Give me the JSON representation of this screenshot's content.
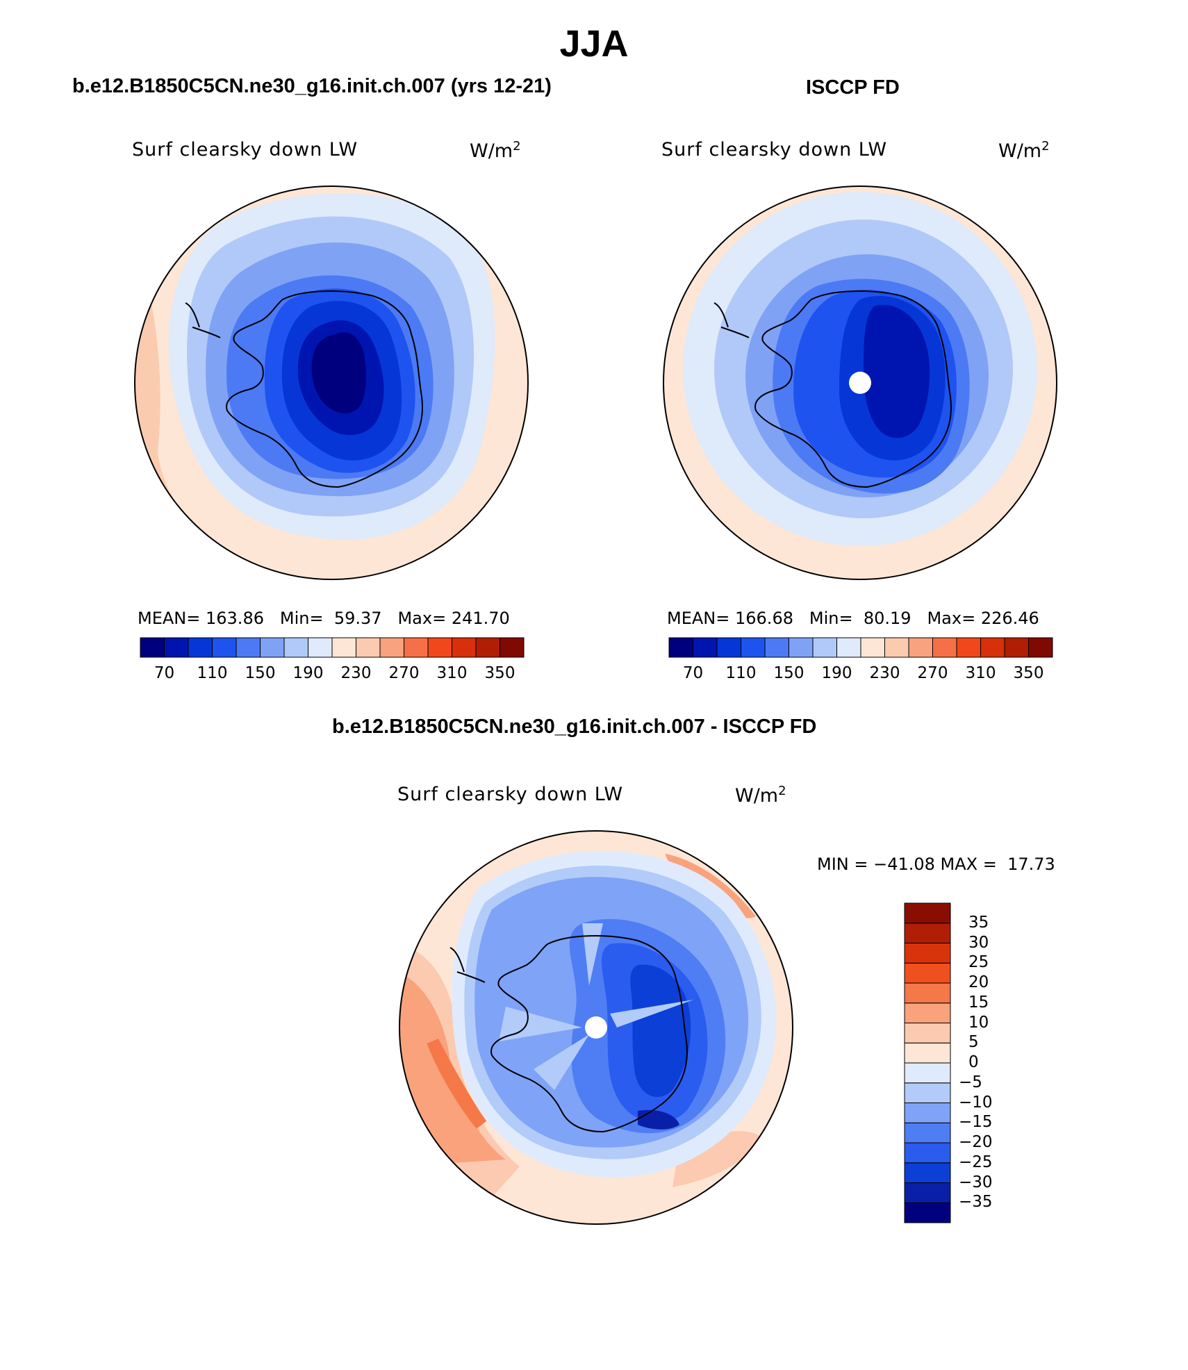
{
  "title": "JJA",
  "panels": {
    "model": {
      "title": "b.e12.B1850C5CN.ne30_g16.init.ch.007 (yrs 12-21)",
      "variable": "Surf clearsky down LW",
      "units": "W/m",
      "units_sup": "2",
      "mean_label": "MEAN=",
      "mean": "163.86",
      "min_label": "Min=",
      "min": "59.37",
      "max_label": "Max=",
      "max": "241.70"
    },
    "obs": {
      "title": "ISCCP FD",
      "variable": "Surf clearsky down LW",
      "units": "W/m",
      "units_sup": "2",
      "mean_label": "MEAN=",
      "mean": "166.68",
      "min_label": "Min=",
      "min": "80.19",
      "max_label": "Max=",
      "max": "226.46"
    },
    "diff": {
      "title": "b.e12.B1850C5CN.ne30_g16.init.ch.007 - ISCCP FD",
      "variable": "Surf clearsky down LW",
      "units": "W/m",
      "units_sup": "2",
      "minmax_text": "MIN = −41.08 MAX =  17.73"
    }
  },
  "colorbar_abs": {
    "colors": [
      "#00007f",
      "#0015b0",
      "#0637d6",
      "#1e53f0",
      "#4b7af4",
      "#7fa2f5",
      "#b1c9f8",
      "#dfeafb",
      "#fde6d6",
      "#fbcbb0",
      "#f8a27e",
      "#f57048",
      "#f0481c",
      "#d7300a",
      "#b01e05",
      "#7f0a02"
    ],
    "tick_labels": [
      "70",
      "110",
      "150",
      "190",
      "230",
      "270",
      "310",
      "350"
    ]
  },
  "colorbar_diff": {
    "colors": [
      "#00007f",
      "#0a1fa8",
      "#0b3fd6",
      "#2a5cf0",
      "#4f7df4",
      "#7fa3f7",
      "#b2cbf9",
      "#dfebfc",
      "#fde6d6",
      "#fccab0",
      "#f9a27c",
      "#f57848",
      "#f0501e",
      "#d8340c",
      "#b01f05",
      "#8a0d02"
    ],
    "tick_labels": [
      "−35",
      "−30",
      "−25",
      "−20",
      "−15",
      "−10",
      "−5",
      "0",
      "5",
      "10",
      "15",
      "20",
      "25",
      "30",
      "35"
    ]
  },
  "chart_data": {
    "type": "heatmap",
    "projection": "south polar stereographic",
    "season": "JJA",
    "maps": [
      {
        "name": "b.e12.B1850C5CN.ne30_g16.init.ch.007 (yrs 12-21)",
        "mean": 163.86,
        "min": 59.37,
        "max": 241.7
      },
      {
        "name": "ISCCP FD",
        "mean": 166.68,
        "min": 80.19,
        "max": 226.46
      },
      {
        "name": "b.e12.B1850C5CN.ne30_g16.init.ch.007 - ISCCP FD",
        "min": -41.08,
        "max": 17.73
      }
    ],
    "contour_levels_abs": [
      70,
      90,
      110,
      130,
      150,
      170,
      190,
      210,
      230,
      250,
      270,
      290,
      310,
      330,
      350
    ],
    "contour_levels_diff": [
      -35,
      -30,
      -25,
      -20,
      -15,
      -10,
      -5,
      0,
      5,
      10,
      15,
      20,
      25,
      30,
      35
    ]
  }
}
